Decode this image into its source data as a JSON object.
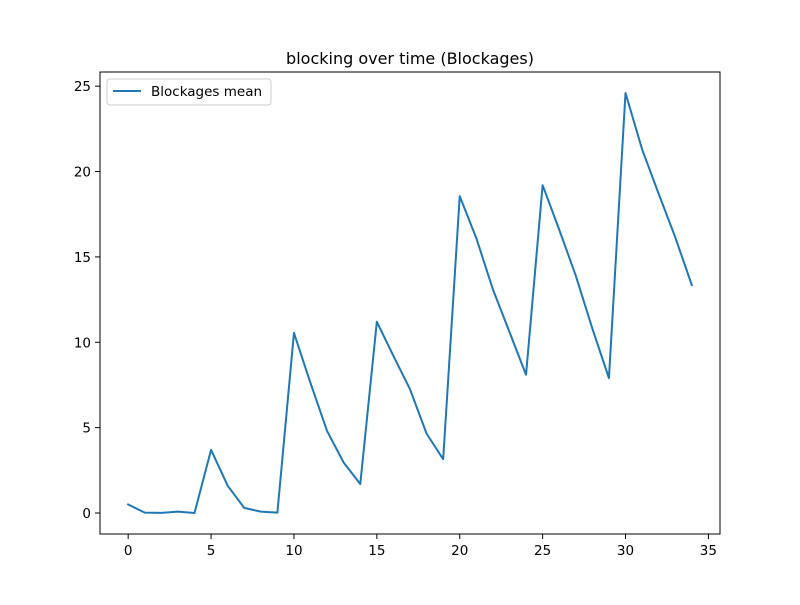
{
  "chart_data": {
    "type": "line",
    "title": "blocking over time (Blockages)",
    "xlabel": "",
    "ylabel": "",
    "xlim": [
      -1.7,
      35.7
    ],
    "ylim": [
      -1.23,
      25.83
    ],
    "xticks": [
      0,
      5,
      10,
      15,
      20,
      25,
      30,
      35
    ],
    "yticks": [
      0,
      5,
      10,
      15,
      20,
      25
    ],
    "grid": false,
    "legend": "top-left",
    "series": [
      {
        "name": "Blockages mean",
        "color": "#1f77b4",
        "x": [
          0,
          1,
          2,
          3,
          4,
          5,
          6,
          7,
          8,
          9,
          10,
          11,
          12,
          13,
          14,
          15,
          16,
          17,
          18,
          19,
          20,
          21,
          22,
          23,
          24,
          25,
          26,
          27,
          28,
          29,
          30,
          31,
          32,
          33,
          34
        ],
        "y": [
          0.5,
          0.02,
          0.01,
          0.08,
          0.0,
          3.7,
          1.6,
          0.3,
          0.08,
          0.02,
          10.55,
          7.6,
          4.8,
          2.95,
          1.7,
          11.2,
          9.2,
          7.25,
          4.65,
          3.15,
          18.55,
          16.1,
          13.1,
          10.6,
          8.1,
          19.2,
          16.6,
          13.9,
          10.8,
          7.9,
          24.6,
          21.3,
          18.7,
          16.15,
          13.35
        ]
      }
    ]
  }
}
